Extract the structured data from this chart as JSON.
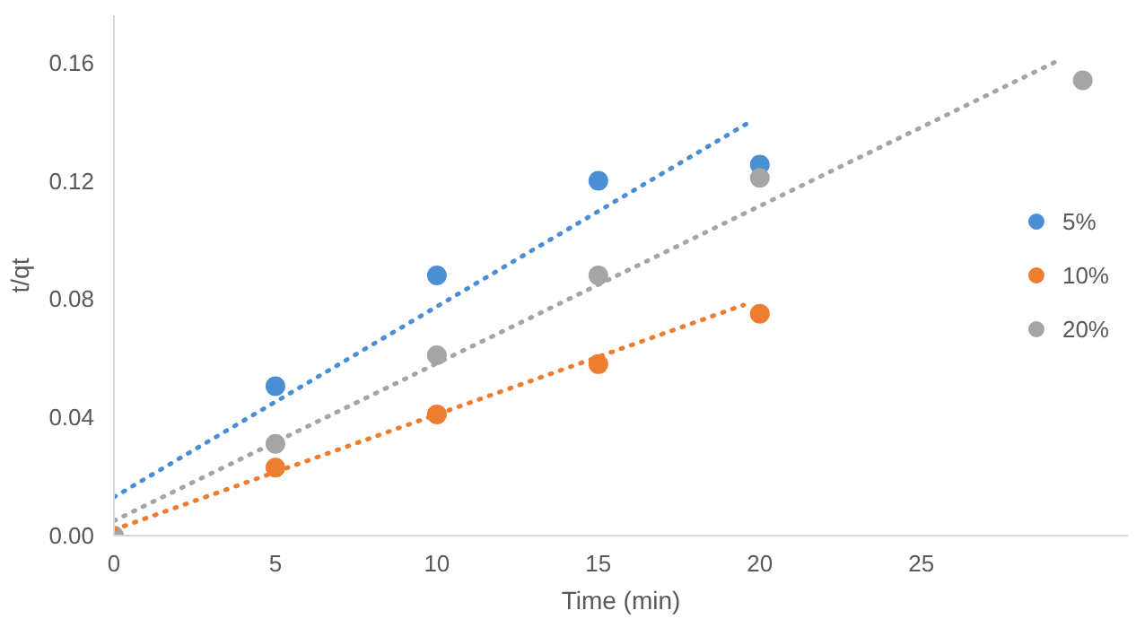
{
  "chart_data": {
    "type": "scatter",
    "xlabel": "Time (min)",
    "ylabel": "t/qt",
    "series": [
      {
        "name": "5%",
        "color": "#4a8fd4",
        "marker": "circle",
        "x": [
          5,
          10,
          15,
          20
        ],
        "values": [
          0.0505,
          0.088,
          0.12,
          0.1255
        ]
      },
      {
        "name": "10%",
        "color": "#ed7d31",
        "marker": "circle",
        "x": [
          5,
          10,
          15,
          20
        ],
        "values": [
          0.023,
          0.041,
          0.058,
          0.075
        ]
      },
      {
        "name": "20%",
        "color": "#a5a5a5",
        "marker": "circle",
        "x": [
          0,
          5,
          10,
          15,
          20,
          30
        ],
        "values": [
          0,
          0.031,
          0.061,
          0.088,
          0.121,
          0.154
        ]
      },
      {
        "type": "line",
        "line_style": "dotted",
        "marker": "none",
        "color": "#4a8fd4",
        "x": [
          0,
          19.7
        ],
        "values": [
          0.013,
          0.14
        ]
      },
      {
        "type": "line",
        "line_style": "dotted",
        "marker": "none",
        "color": "#ed7d31",
        "x": [
          0,
          19.5
        ],
        "values": [
          0.002,
          0.078
        ]
      },
      {
        "type": "line",
        "line_style": "dotted",
        "marker": "none",
        "color": "#a5a5a5",
        "x": [
          0,
          29.3
        ],
        "values": [
          0.005,
          0.161
        ]
      }
    ],
    "xlim": [
      0,
      31.4
    ],
    "xticks": [
      0,
      5,
      10,
      15,
      20,
      25
    ],
    "ylim": [
      0,
      0.176
    ],
    "yticks": [
      {
        "value": 0,
        "label": "0.00"
      },
      0.04,
      0.08,
      0.12,
      0.16
    ],
    "grid": false,
    "legend": "right"
  }
}
